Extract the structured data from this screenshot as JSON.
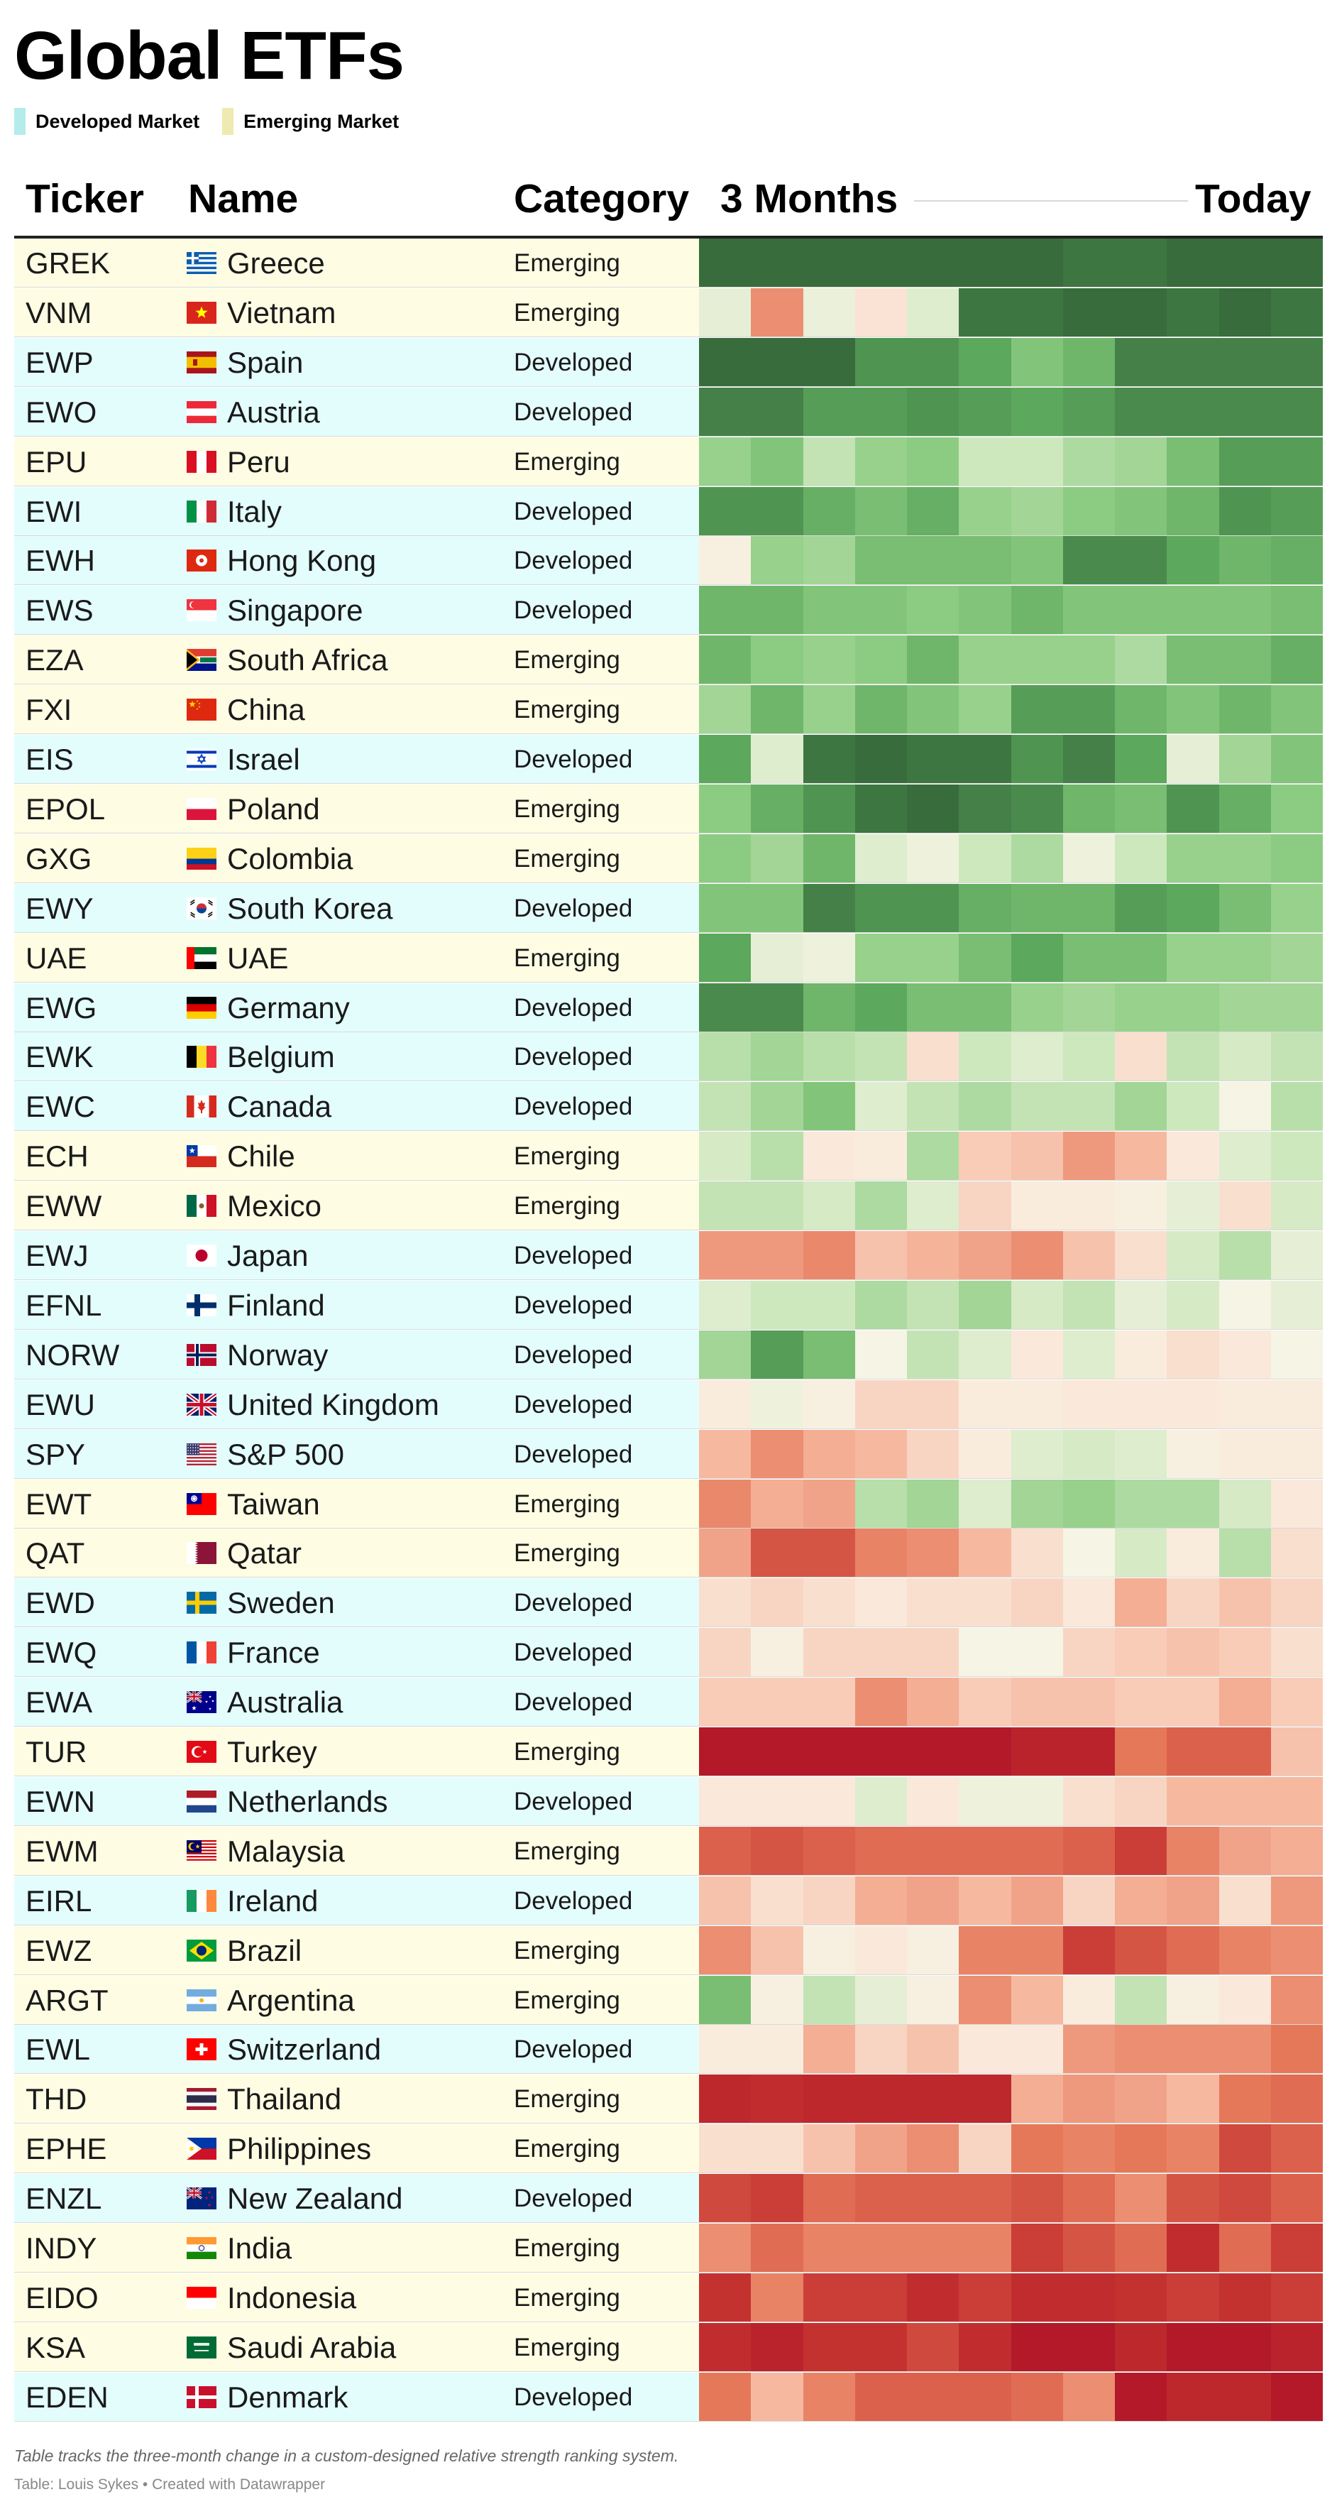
{
  "title": "Global ETFs",
  "legend": [
    {
      "label": "Developed Market",
      "color": "#b4ecec"
    },
    {
      "label": "Emerging Market",
      "color": "#eeeab1"
    }
  ],
  "row_colors": {
    "Developed": "#e3fdfd",
    "Emerging": "#fefde3"
  },
  "columns": {
    "ticker": "Ticker",
    "name": "Name",
    "category": "Category",
    "start": "3 Months",
    "end": "Today"
  },
  "footnote": "Table tracks the three-month change in a custom-designed relative strength ranking system.",
  "source": "Table: Louis Sykes • Created with Datawrapper",
  "chart_data": {
    "type": "heatmap",
    "scale": {
      "high": "strong relative strength (green)",
      "low": "weak relative strength (red)",
      "min": 0,
      "max": 100
    },
    "rows": [
      {
        "ticker": "GREK",
        "name": "Greece",
        "category": "Emerging",
        "flag": "greece",
        "values": [
          98,
          98,
          98,
          98,
          98,
          98,
          98,
          94,
          94,
          98,
          96,
          98
        ]
      },
      {
        "ticker": "VNM",
        "name": "Vietnam",
        "category": "Emerging",
        "flag": "vietnam",
        "values": [
          56,
          28,
          55,
          45,
          58,
          94,
          94,
          98,
          98,
          94,
          98,
          94
        ]
      },
      {
        "ticker": "EWP",
        "name": "Spain",
        "category": "Developed",
        "flag": "spain",
        "values": [
          96,
          96,
          96,
          88,
          88,
          84,
          76,
          80,
          92,
          92,
          92,
          92
        ]
      },
      {
        "ticker": "EWO",
        "name": "Austria",
        "category": "Developed",
        "flag": "austria",
        "values": [
          92,
          92,
          86,
          86,
          88,
          86,
          84,
          86,
          90,
          90,
          90,
          90
        ]
      },
      {
        "ticker": "EPU",
        "name": "Peru",
        "category": "Emerging",
        "flag": "peru",
        "values": [
          72,
          76,
          64,
          72,
          74,
          62,
          62,
          68,
          70,
          78,
          86,
          86
        ]
      },
      {
        "ticker": "EWI",
        "name": "Italy",
        "category": "Developed",
        "flag": "italy",
        "values": [
          88,
          88,
          82,
          78,
          82,
          72,
          70,
          74,
          76,
          80,
          88,
          86
        ]
      },
      {
        "ticker": "EWH",
        "name": "Hong Kong",
        "category": "Developed",
        "flag": "hongkong",
        "values": [
          50,
          72,
          70,
          78,
          78,
          78,
          76,
          90,
          90,
          84,
          80,
          82
        ]
      },
      {
        "ticker": "EWS",
        "name": "Singapore",
        "category": "Developed",
        "flag": "singapore",
        "values": [
          80,
          80,
          76,
          76,
          74,
          76,
          80,
          76,
          76,
          76,
          76,
          78
        ]
      },
      {
        "ticker": "EZA",
        "name": "South Africa",
        "category": "Emerging",
        "flag": "southafrica",
        "values": [
          80,
          74,
          72,
          74,
          80,
          72,
          72,
          72,
          68,
          78,
          78,
          82
        ]
      },
      {
        "ticker": "FXI",
        "name": "China",
        "category": "Emerging",
        "flag": "china",
        "values": [
          70,
          80,
          72,
          80,
          76,
          72,
          86,
          86,
          80,
          76,
          80,
          76
        ]
      },
      {
        "ticker": "EIS",
        "name": "Israel",
        "category": "Developed",
        "flag": "israel",
        "values": [
          84,
          58,
          94,
          96,
          94,
          94,
          88,
          92,
          84,
          56,
          70,
          76
        ]
      },
      {
        "ticker": "EPOL",
        "name": "Poland",
        "category": "Emerging",
        "flag": "poland",
        "values": [
          74,
          82,
          88,
          94,
          96,
          92,
          90,
          80,
          78,
          88,
          82,
          74
        ]
      },
      {
        "ticker": "GXG",
        "name": "Colombia",
        "category": "Emerging",
        "flag": "colombia",
        "values": [
          74,
          70,
          80,
          58,
          54,
          62,
          68,
          54,
          62,
          72,
          72,
          74
        ]
      },
      {
        "ticker": "EWY",
        "name": "South Korea",
        "category": "Developed",
        "flag": "southkorea",
        "values": [
          76,
          76,
          92,
          88,
          88,
          82,
          80,
          80,
          86,
          84,
          78,
          72
        ]
      },
      {
        "ticker": "UAE",
        "name": "UAE",
        "category": "Emerging",
        "flag": "uae",
        "values": [
          84,
          56,
          54,
          72,
          72,
          78,
          84,
          78,
          78,
          72,
          72,
          70
        ]
      },
      {
        "ticker": "EWG",
        "name": "Germany",
        "category": "Developed",
        "flag": "germany",
        "values": [
          90,
          90,
          80,
          84,
          78,
          78,
          72,
          70,
          72,
          72,
          70,
          70
        ]
      },
      {
        "ticker": "EWK",
        "name": "Belgium",
        "category": "Developed",
        "flag": "belgium",
        "values": [
          66,
          70,
          66,
          64,
          44,
          62,
          58,
          62,
          44,
          64,
          60,
          64
        ]
      },
      {
        "ticker": "EWC",
        "name": "Canada",
        "category": "Developed",
        "flag": "canada",
        "values": [
          64,
          70,
          76,
          58,
          64,
          68,
          64,
          64,
          70,
          62,
          52,
          66
        ]
      },
      {
        "ticker": "ECH",
        "name": "Chile",
        "category": "Emerging",
        "flag": "chile",
        "values": [
          60,
          66,
          46,
          48,
          68,
          40,
          38,
          30,
          36,
          46,
          58,
          62
        ]
      },
      {
        "ticker": "EWW",
        "name": "Mexico",
        "category": "Emerging",
        "flag": "mexico",
        "values": [
          64,
          64,
          60,
          68,
          58,
          42,
          48,
          48,
          50,
          56,
          44,
          60
        ]
      },
      {
        "ticker": "EWJ",
        "name": "Japan",
        "category": "Developed",
        "flag": "japan",
        "values": [
          30,
          30,
          27,
          38,
          35,
          32,
          28,
          38,
          44,
          60,
          66,
          56
        ]
      },
      {
        "ticker": "EFNL",
        "name": "Finland",
        "category": "Developed",
        "flag": "finland",
        "values": [
          58,
          62,
          62,
          68,
          64,
          70,
          60,
          64,
          56,
          60,
          52,
          56
        ]
      },
      {
        "ticker": "NORW",
        "name": "Norway",
        "category": "Developed",
        "flag": "norway",
        "values": [
          70,
          86,
          78,
          52,
          64,
          58,
          46,
          58,
          48,
          44,
          46,
          52
        ]
      },
      {
        "ticker": "EWU",
        "name": "United Kingdom",
        "category": "Developed",
        "flag": "uk",
        "values": [
          48,
          54,
          50,
          42,
          42,
          48,
          48,
          46,
          46,
          46,
          48,
          48
        ]
      },
      {
        "ticker": "SPY",
        "name": "S&P 500",
        "category": "Developed",
        "flag": "usa",
        "values": [
          36,
          28,
          34,
          36,
          42,
          48,
          58,
          60,
          58,
          50,
          48,
          48
        ]
      },
      {
        "ticker": "EWT",
        "name": "Taiwan",
        "category": "Emerging",
        "flag": "taiwan",
        "values": [
          27,
          34,
          32,
          66,
          70,
          58,
          70,
          72,
          68,
          68,
          60,
          46
        ]
      },
      {
        "ticker": "QAT",
        "name": "Qatar",
        "category": "Emerging",
        "flag": "qatar",
        "values": [
          32,
          18,
          18,
          26,
          28,
          36,
          44,
          52,
          60,
          48,
          66,
          44
        ]
      },
      {
        "ticker": "EWD",
        "name": "Sweden",
        "category": "Developed",
        "flag": "sweden",
        "values": [
          44,
          42,
          44,
          46,
          44,
          44,
          42,
          46,
          34,
          42,
          38,
          42
        ]
      },
      {
        "ticker": "EWQ",
        "name": "France",
        "category": "Developed",
        "flag": "france",
        "values": [
          42,
          50,
          42,
          42,
          42,
          52,
          52,
          42,
          40,
          38,
          40,
          44
        ]
      },
      {
        "ticker": "EWA",
        "name": "Australia",
        "category": "Developed",
        "flag": "australia",
        "values": [
          40,
          40,
          40,
          28,
          34,
          40,
          38,
          38,
          40,
          40,
          34,
          40
        ]
      },
      {
        "ticker": "TUR",
        "name": "Turkey",
        "category": "Emerging",
        "flag": "turkey",
        "values": [
          2,
          2,
          2,
          2,
          2,
          2,
          6,
          6,
          24,
          20,
          20,
          38
        ]
      },
      {
        "ticker": "EWN",
        "name": "Netherlands",
        "category": "Developed",
        "flag": "netherlands",
        "values": [
          46,
          46,
          46,
          58,
          46,
          54,
          54,
          44,
          42,
          36,
          36,
          36
        ]
      },
      {
        "ticker": "EWM",
        "name": "Malaysia",
        "category": "Emerging",
        "flag": "malaysia",
        "values": [
          20,
          18,
          20,
          22,
          22,
          22,
          22,
          20,
          14,
          26,
          32,
          34
        ]
      },
      {
        "ticker": "EIRL",
        "name": "Ireland",
        "category": "Developed",
        "flag": "ireland",
        "values": [
          38,
          44,
          42,
          34,
          32,
          36,
          32,
          42,
          34,
          32,
          44,
          30
        ]
      },
      {
        "ticker": "EWZ",
        "name": "Brazil",
        "category": "Emerging",
        "flag": "brazil",
        "values": [
          28,
          38,
          50,
          46,
          50,
          26,
          26,
          14,
          18,
          22,
          26,
          28
        ]
      },
      {
        "ticker": "ARGT",
        "name": "Argentina",
        "category": "Emerging",
        "flag": "argentina",
        "values": [
          78,
          50,
          64,
          56,
          50,
          28,
          36,
          48,
          64,
          50,
          46,
          28
        ]
      },
      {
        "ticker": "EWL",
        "name": "Switzerland",
        "category": "Developed",
        "flag": "switzerland",
        "values": [
          48,
          48,
          34,
          42,
          38,
          46,
          46,
          30,
          28,
          28,
          28,
          24
        ]
      },
      {
        "ticker": "THD",
        "name": "Thailand",
        "category": "Emerging",
        "flag": "thailand",
        "values": [
          8,
          10,
          8,
          8,
          8,
          8,
          34,
          30,
          32,
          36,
          24,
          22
        ]
      },
      {
        "ticker": "EPHE",
        "name": "Philippines",
        "category": "Emerging",
        "flag": "philippines",
        "values": [
          44,
          44,
          38,
          32,
          28,
          42,
          24,
          26,
          24,
          26,
          16,
          20
        ]
      },
      {
        "ticker": "ENZL",
        "name": "New Zealand",
        "category": "Developed",
        "flag": "newzealand",
        "values": [
          16,
          14,
          22,
          20,
          20,
          20,
          18,
          22,
          28,
          18,
          16,
          20
        ]
      },
      {
        "ticker": "INDY",
        "name": "India",
        "category": "Emerging",
        "flag": "india",
        "values": [
          28,
          22,
          26,
          26,
          26,
          26,
          14,
          18,
          22,
          10,
          22,
          14
        ]
      },
      {
        "ticker": "EIDO",
        "name": "Indonesia",
        "category": "Emerging",
        "flag": "indonesia",
        "values": [
          12,
          26,
          14,
          14,
          10,
          14,
          10,
          10,
          12,
          14,
          12,
          14
        ]
      },
      {
        "ticker": "KSA",
        "name": "Saudi Arabia",
        "category": "Emerging",
        "flag": "saudiarabia",
        "values": [
          10,
          6,
          12,
          12,
          16,
          10,
          2,
          2,
          8,
          2,
          2,
          6
        ]
      },
      {
        "ticker": "EDEN",
        "name": "Denmark",
        "category": "Developed",
        "flag": "denmark",
        "values": [
          24,
          36,
          26,
          20,
          20,
          20,
          22,
          28,
          2,
          8,
          8,
          2
        ]
      }
    ]
  }
}
